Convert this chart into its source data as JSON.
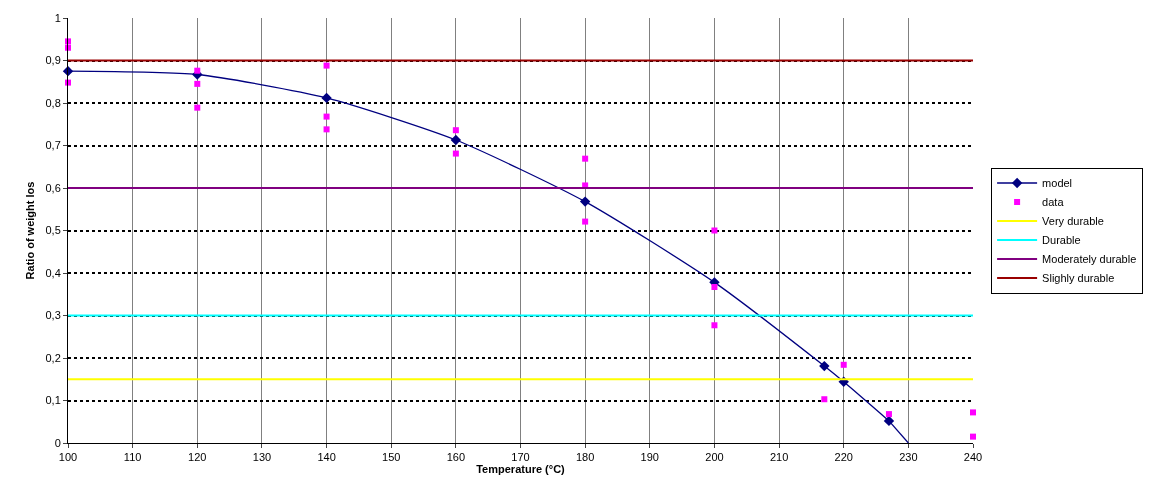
{
  "chart_data": {
    "type": "line",
    "xlabel": "Temperature (°C)",
    "ylabel": "Ratio of weight los",
    "xlim": [
      100,
      240
    ],
    "xticks": [
      100,
      110,
      120,
      130,
      140,
      150,
      160,
      170,
      180,
      190,
      200,
      210,
      220,
      230,
      240
    ],
    "ylim": [
      0,
      1
    ],
    "yticks": [
      0,
      {
        "value": 0.1,
        "label": "0,1"
      },
      {
        "value": 0.2,
        "label": "0,2"
      },
      {
        "value": 0.3,
        "label": "0,3"
      },
      {
        "value": 0.4,
        "label": "0,4"
      },
      {
        "value": 0.5,
        "label": "0,5"
      },
      {
        "value": 0.6,
        "label": "0,6"
      },
      {
        "value": 0.7,
        "label": "0,7"
      },
      {
        "value": 0.8,
        "label": "0,8"
      },
      {
        "value": 0.9,
        "label": "0,9"
      },
      1
    ],
    "grid": true,
    "legend": "right",
    "series": [
      {
        "name": "model",
        "color": "#000080",
        "marker": "diamond",
        "x": [
          100,
          120,
          140,
          160,
          180,
          200,
          217,
          220,
          227
        ],
        "values": [
          0.875,
          0.867,
          0.812,
          0.713,
          0.568,
          0.378,
          0.181,
          0.144,
          0.052
        ]
      },
      {
        "color": "#000080",
        "marker": "none",
        "x": [
          227,
          230
        ],
        "values": [
          0.052,
          0
        ]
      },
      {
        "name": "data",
        "type": "scatter",
        "color": "#ff00ff",
        "marker": "square",
        "x": [
          100,
          100,
          100,
          120,
          120,
          120,
          140,
          140,
          140,
          160,
          160,
          180,
          180,
          180,
          200,
          200,
          200,
          217,
          220,
          227,
          240,
          240
        ],
        "values": [
          0.945,
          0.93,
          0.848,
          0.876,
          0.845,
          0.789,
          0.888,
          0.768,
          0.738,
          0.736,
          0.681,
          0.669,
          0.606,
          0.521,
          0.5,
          0.367,
          0.277,
          0.103,
          0.184,
          0.068,
          0.072,
          0.015
        ]
      },
      {
        "name": "Very durable",
        "color": "#ffff00",
        "marker": "none",
        "x": [
          100,
          240
        ],
        "values": [
          0.15,
          0.15
        ]
      },
      {
        "name": "Durable",
        "color": "#00ffff",
        "marker": "none",
        "x": [
          100,
          240
        ],
        "values": [
          0.3,
          0.3
        ]
      },
      {
        "name": "Moderately durable",
        "color": "#800080",
        "marker": "none",
        "x": [
          100,
          240
        ],
        "values": [
          0.6,
          0.6
        ]
      },
      {
        "name": "Slighly durable",
        "color": "#990000",
        "marker": "none",
        "x": [
          100,
          240
        ],
        "values": [
          0.9,
          0.9
        ]
      }
    ]
  }
}
